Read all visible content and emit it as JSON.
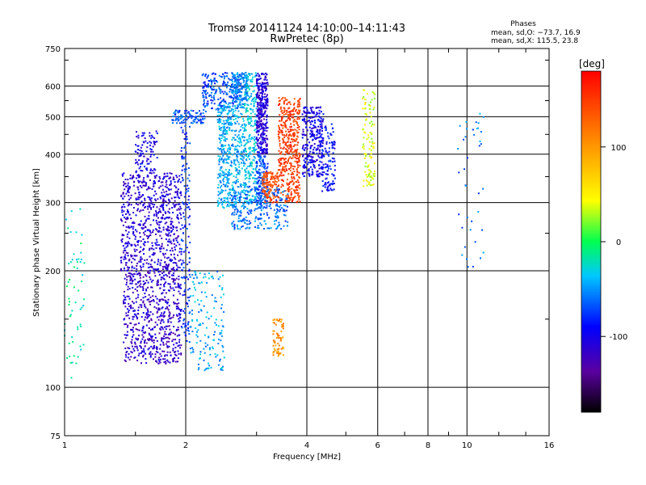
{
  "chart_data": {
    "type": "scatter",
    "title": "Tromsø 20141124 14:10:00–14:11:43",
    "subtitle": "RwPretec (8p)",
    "xlabel": "Frequency [MHz]",
    "ylabel": "Stationary phase Virtual Height [km]",
    "x_scale": "log",
    "y_scale": "log",
    "xlim": [
      1,
      16
    ],
    "ylim": [
      75,
      750
    ],
    "x_ticks": [
      1,
      2,
      4,
      6,
      8,
      10,
      16
    ],
    "y_ticks": [
      75,
      100,
      200,
      300,
      400,
      500,
      600,
      750
    ],
    "grid": true,
    "phases_box": {
      "title": "Phases",
      "line1": "mean, sd,O: −73.7, 16.9",
      "line2": "mean, sd,X: 115.5, 23.8"
    },
    "colorbar": {
      "label": "[deg]",
      "range": [
        -180,
        180
      ],
      "ticks": [
        100,
        0,
        -100
      ]
    },
    "point_clusters": [
      {
        "x": [
          1.0,
          1.12
        ],
        "y": [
          105,
          290
        ],
        "phase": -20,
        "n": 60
      },
      {
        "x": [
          1.38,
          1.95
        ],
        "y": [
          200,
          360
        ],
        "phase": -110,
        "n": 700
      },
      {
        "x": [
          1.4,
          1.95
        ],
        "y": [
          115,
          200
        ],
        "phase": -115,
        "n": 600
      },
      {
        "x": [
          1.5,
          1.7
        ],
        "y": [
          360,
          460
        ],
        "phase": -100,
        "n": 90
      },
      {
        "x": [
          1.95,
          2.05
        ],
        "y": [
          130,
          500
        ],
        "phase": -80,
        "n": 150
      },
      {
        "x": [
          1.85,
          2.25
        ],
        "y": [
          480,
          520
        ],
        "phase": -70,
        "n": 90
      },
      {
        "x": [
          2.2,
          2.7
        ],
        "y": [
          520,
          650
        ],
        "phase": -70,
        "n": 200
      },
      {
        "x": [
          2.05,
          2.5
        ],
        "y": [
          110,
          200
        ],
        "phase": -45,
        "n": 150
      },
      {
        "x": [
          2.4,
          2.8
        ],
        "y": [
          290,
          550
        ],
        "phase": -45,
        "n": 500
      },
      {
        "x": [
          2.6,
          2.85
        ],
        "y": [
          550,
          650
        ],
        "phase": -55,
        "n": 160
      },
      {
        "x": [
          2.8,
          3.0
        ],
        "y": [
          300,
          650
        ],
        "phase": -35,
        "n": 260
      },
      {
        "x": [
          3.0,
          3.2
        ],
        "y": [
          400,
          650
        ],
        "phase": -110,
        "n": 320
      },
      {
        "x": [
          3.0,
          3.2
        ],
        "y": [
          290,
          400
        ],
        "phase": -70,
        "n": 160
      },
      {
        "x": [
          3.1,
          3.4
        ],
        "y": [
          300,
          360
        ],
        "phase": 140,
        "n": 140
      },
      {
        "x": [
          3.4,
          3.85
        ],
        "y": [
          300,
          560
        ],
        "phase": 150,
        "n": 450
      },
      {
        "x": [
          3.3,
          3.5
        ],
        "y": [
          120,
          150
        ],
        "phase": 105,
        "n": 70
      },
      {
        "x": [
          3.9,
          4.4
        ],
        "y": [
          350,
          530
        ],
        "phase": -100,
        "n": 280
      },
      {
        "x": [
          4.35,
          4.7
        ],
        "y": [
          320,
          480
        ],
        "phase": -90,
        "n": 120
      },
      {
        "x": [
          5.5,
          5.9
        ],
        "y": [
          330,
          590
        ],
        "phase": 40,
        "n": 110
      },
      {
        "x": [
          9.5,
          11
        ],
        "y": [
          200,
          530
        ],
        "phase": -60,
        "n": 40
      },
      {
        "x": [
          2.6,
          3.6
        ],
        "y": [
          255,
          330
        ],
        "phase": -60,
        "n": 260
      }
    ]
  }
}
